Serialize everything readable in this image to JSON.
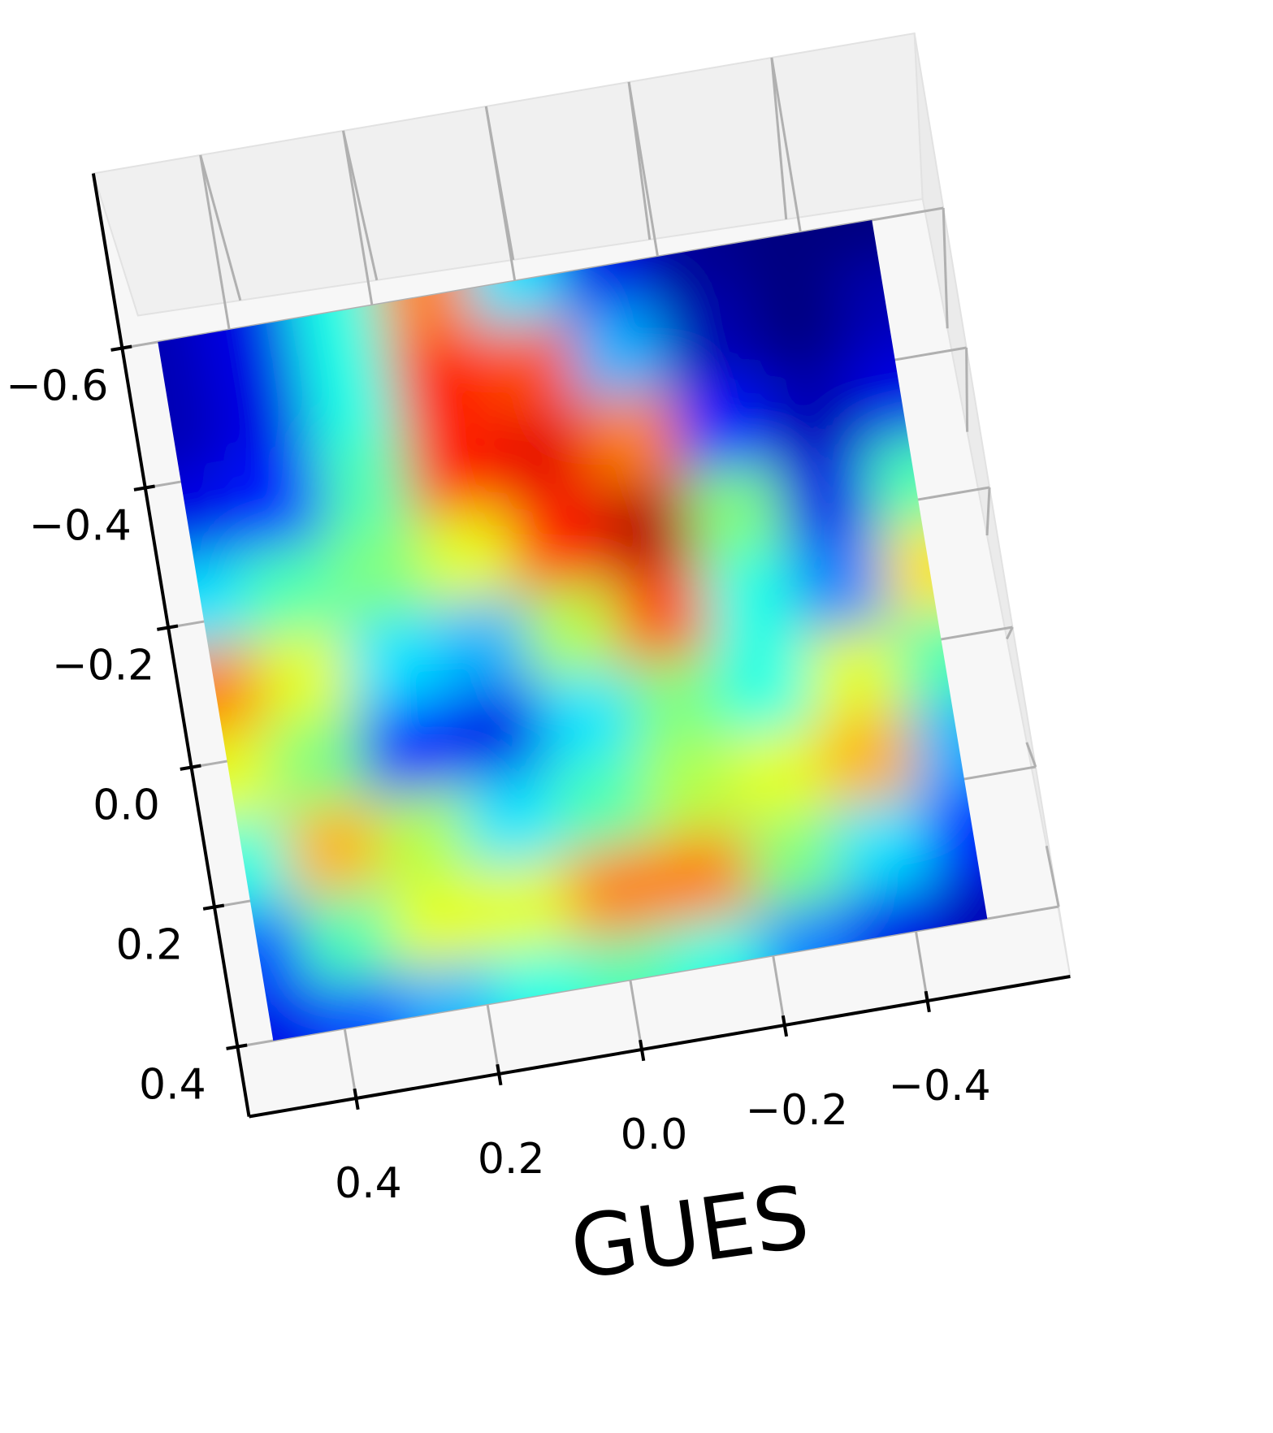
{
  "chart_data": {
    "type": "surface",
    "x_label": "GUES",
    "colormap": "jet",
    "xlim": [
      0.55,
      -0.6
    ],
    "ylim": [
      -0.85,
      0.5
    ],
    "xticks": [
      0.4,
      0.2,
      {
        "value": 0,
        "label": "0.0"
      },
      {
        "value": -0.2,
        "label": "−0.2"
      },
      {
        "value": -0.4,
        "label": "−0.4"
      }
    ],
    "yticks": [
      {
        "value": -0.6,
        "label": "−0.6"
      },
      {
        "value": -0.4,
        "label": "−0.4"
      },
      {
        "value": -0.2,
        "label": "−0.2"
      },
      {
        "value": 0,
        "label": "0.0"
      },
      0.2,
      0.4
    ],
    "x": [
      0.5,
      0.375,
      0.25,
      0.125,
      0,
      -0.125,
      -0.25,
      -0.375,
      -0.5
    ],
    "y": [
      -0.6,
      -0.475,
      -0.35,
      -0.225,
      -0.1,
      0.025,
      0.15,
      0.275,
      0.4
    ],
    "z": [
      [
        0.05,
        0.1,
        0.4,
        0.75,
        0.35,
        0.1,
        0.02,
        0,
        0
      ],
      [
        0.05,
        0.1,
        0.4,
        0.85,
        0.8,
        0.3,
        0.05,
        0,
        0.05
      ],
      [
        0.1,
        0.15,
        0.45,
        0.85,
        0.9,
        0.75,
        0.15,
        0.05,
        0.1
      ],
      [
        0.35,
        0.45,
        0.5,
        0.6,
        0.85,
        0.95,
        0.5,
        0.1,
        0.45
      ],
      [
        0.75,
        0.6,
        0.35,
        0.3,
        0.55,
        0.8,
        0.4,
        0.25,
        0.65
      ],
      [
        0.6,
        0.5,
        0.15,
        0.1,
        0.35,
        0.5,
        0.4,
        0.6,
        0.45
      ],
      [
        0.4,
        0.7,
        0.55,
        0.35,
        0.45,
        0.55,
        0.6,
        0.7,
        0.3
      ],
      [
        0.2,
        0.45,
        0.6,
        0.6,
        0.75,
        0.75,
        0.5,
        0.35,
        0.15
      ],
      [
        0.1,
        0.2,
        0.3,
        0.4,
        0.45,
        0.4,
        0.25,
        0.1,
        0.05
      ]
    ]
  }
}
